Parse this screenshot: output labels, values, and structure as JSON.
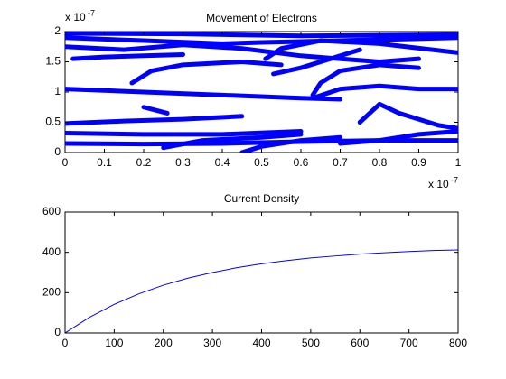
{
  "chart_data": [
    {
      "type": "line",
      "title": "Movement of Electrons",
      "color": "#0000ff",
      "x_multiplier": {
        "base": "x 10",
        "exponent": "-7"
      },
      "y_multiplier": {
        "base": "x 10",
        "exponent": "-7"
      },
      "xlim": [
        0,
        1
      ],
      "xticks": [
        0,
        0.1,
        0.2,
        0.3,
        0.4,
        0.5,
        0.6,
        0.7,
        0.8,
        0.9,
        1
      ],
      "ylim": [
        0,
        2
      ],
      "yticks": [
        0,
        0.5,
        1,
        1.5,
        2
      ],
      "series": [
        {
          "x": [
            0,
            0.3,
            0.6,
            1
          ],
          "values": [
            1.97,
            1.96,
            1.93,
            1.95
          ]
        },
        {
          "x": [
            0,
            0.2,
            0.4,
            0.5,
            0.7,
            1
          ],
          "values": [
            1.9,
            1.85,
            1.8,
            1.82,
            1.85,
            1.9
          ]
        },
        {
          "x": [
            0,
            0.15,
            0.3,
            0.45,
            0.6,
            0.8,
            0.9
          ],
          "values": [
            1.75,
            1.7,
            1.78,
            1.72,
            1.6,
            1.5,
            1.55
          ]
        },
        {
          "x": [
            0.17,
            0.22,
            0.3,
            0.45,
            0.55
          ],
          "values": [
            1.15,
            1.35,
            1.45,
            1.5,
            1.45
          ]
        },
        {
          "x": [
            0.02,
            0.1,
            0.2,
            0.3
          ],
          "values": [
            1.55,
            1.58,
            1.6,
            1.62
          ]
        },
        {
          "x": [
            0.51,
            0.55,
            0.65,
            0.8,
            1
          ],
          "values": [
            1.55,
            1.72,
            1.85,
            1.8,
            1.65
          ]
        },
        {
          "x": [
            0,
            0.2,
            0.4,
            0.6,
            0.7
          ],
          "values": [
            1.05,
            1.0,
            0.95,
            0.9,
            0.88
          ]
        },
        {
          "x": [
            0.63,
            0.65,
            0.7,
            0.8,
            0.9
          ],
          "values": [
            0.95,
            1.15,
            1.35,
            1.45,
            1.4
          ]
        },
        {
          "x": [
            0.63,
            0.7,
            0.8,
            0.9,
            1
          ],
          "values": [
            0.9,
            1.05,
            1.1,
            1.05,
            1.05
          ]
        },
        {
          "x": [
            0,
            0.15,
            0.3,
            0.45
          ],
          "values": [
            0.48,
            0.52,
            0.55,
            0.6
          ]
        },
        {
          "x": [
            0.2,
            0.23,
            0.26
          ],
          "values": [
            0.75,
            0.7,
            0.65
          ]
        },
        {
          "x": [
            0.75,
            0.8,
            0.85,
            0.9,
            0.95,
            1
          ],
          "values": [
            0.5,
            0.8,
            0.65,
            0.55,
            0.45,
            0.4
          ]
        },
        {
          "x": [
            0,
            0.2,
            0.4,
            0.6
          ],
          "values": [
            0.32,
            0.3,
            0.3,
            0.35
          ]
        },
        {
          "x": [
            0,
            0.2,
            0.4,
            0.6,
            0.8,
            1
          ],
          "values": [
            0.15,
            0.14,
            0.15,
            0.18,
            0.2,
            0.2
          ]
        },
        {
          "x": [
            0.25,
            0.35,
            0.5,
            0.6
          ],
          "values": [
            0.08,
            0.2,
            0.25,
            0.3
          ]
        },
        {
          "x": [
            0.45,
            0.5,
            0.6,
            0.7
          ],
          "values": [
            0.0,
            0.1,
            0.2,
            0.25
          ]
        },
        {
          "x": [
            0.7,
            0.8,
            0.9,
            1
          ],
          "values": [
            0.15,
            0.2,
            0.3,
            0.35
          ]
        },
        {
          "x": [
            0.53,
            0.6,
            0.7,
            0.75
          ],
          "values": [
            1.3,
            1.4,
            1.6,
            1.7
          ]
        }
      ]
    },
    {
      "type": "line",
      "title": "Current Density",
      "color": "#0000ff",
      "xlim": [
        0,
        800
      ],
      "xticks": [
        0,
        100,
        200,
        300,
        400,
        500,
        600,
        700,
        800
      ],
      "ylim": [
        0,
        600
      ],
      "yticks": [
        0,
        200,
        400,
        600
      ],
      "series": [
        {
          "x": [
            0,
            50,
            100,
            150,
            200,
            250,
            300,
            350,
            400,
            450,
            500,
            550,
            600,
            650,
            700,
            750,
            800
          ],
          "values": [
            0,
            78,
            142,
            194,
            237,
            272,
            300,
            324,
            343,
            359,
            372,
            382,
            391,
            398,
            404,
            409,
            412
          ]
        }
      ]
    }
  ]
}
